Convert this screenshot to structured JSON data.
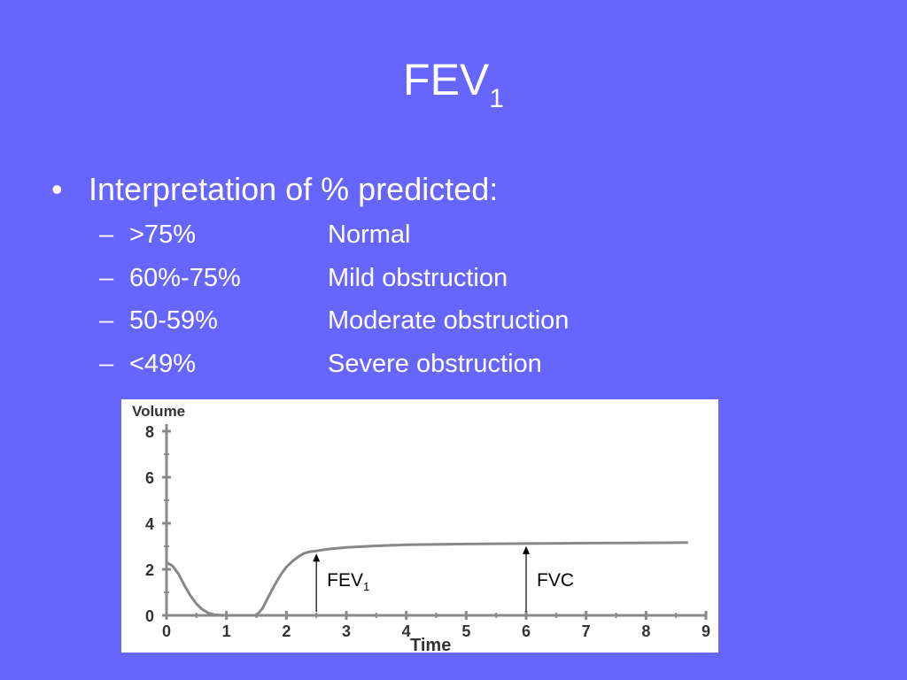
{
  "slide": {
    "title_main": "FEV",
    "title_sub": "1",
    "bullet_marker": "•",
    "bullet_text": "Interpretation of % predicted:",
    "dash": "–",
    "rows": [
      {
        "range": ">75%",
        "interpretation": "Normal"
      },
      {
        "range": "60%-75%",
        "interpretation": "Mild obstruction"
      },
      {
        "range": "50-59%",
        "interpretation": "Moderate obstruction"
      },
      {
        "range": "<49%",
        "interpretation": "Severe obstruction"
      }
    ]
  },
  "chart_data": {
    "type": "line",
    "title": "",
    "xlabel": "Time",
    "ylabel": "Volume",
    "xlim": [
      0,
      9
    ],
    "ylim": [
      0,
      8
    ],
    "x_ticks": [
      0,
      1,
      2,
      3,
      4,
      5,
      6,
      7,
      8,
      9
    ],
    "y_ticks": [
      0,
      2,
      4,
      6,
      8
    ],
    "grid": false,
    "series": [
      {
        "x": [
          0,
          0.1,
          0.2,
          0.3,
          0.4,
          0.5,
          0.6,
          0.7,
          0.8,
          0.9,
          1.0,
          1.2,
          1.4,
          1.5,
          1.6,
          1.7,
          1.8,
          1.9,
          2.0,
          2.1,
          2.2,
          2.3,
          2.4,
          2.5,
          2.7,
          3.0,
          3.5,
          4.0,
          5.0,
          6.0,
          7.0,
          8.0,
          8.7
        ],
        "values": [
          2.3,
          2.15,
          1.8,
          1.3,
          0.85,
          0.5,
          0.25,
          0.1,
          0.03,
          0.01,
          0,
          0,
          0,
          0,
          0.3,
          0.8,
          1.3,
          1.75,
          2.1,
          2.35,
          2.55,
          2.7,
          2.77,
          2.8,
          2.88,
          2.95,
          3.02,
          3.07,
          3.1,
          3.12,
          3.14,
          3.15,
          3.16
        ]
      }
    ],
    "annotations": [
      {
        "label_main": "FEV",
        "label_sub": "1",
        "x": 2.5,
        "y": 2.8
      },
      {
        "label_main": "FVC",
        "label_sub": "",
        "x": 6.0,
        "y": 3.12
      }
    ]
  }
}
